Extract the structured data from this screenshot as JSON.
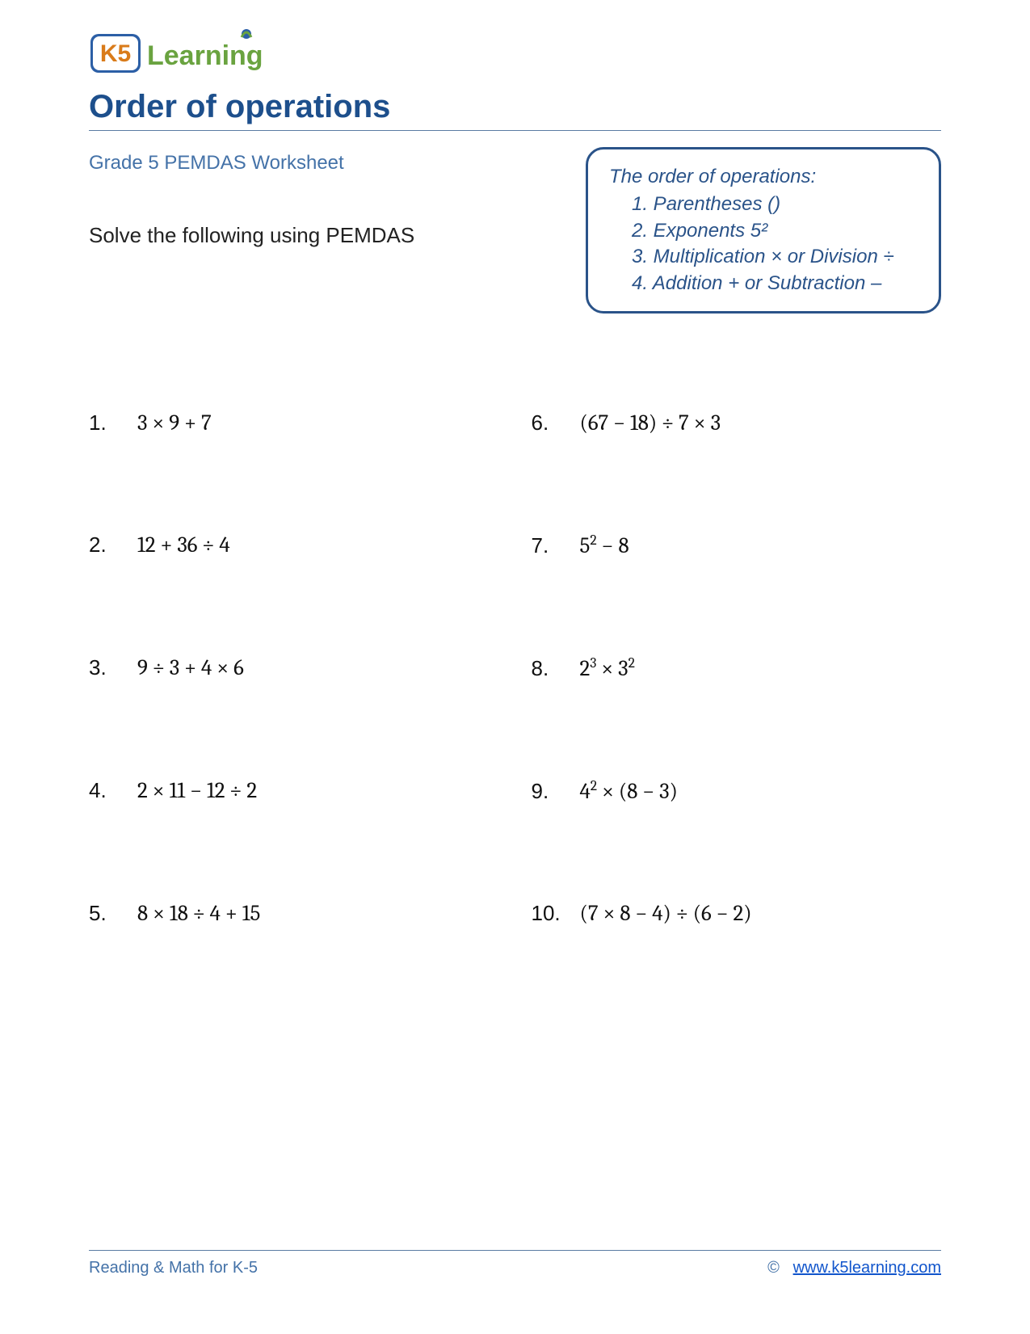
{
  "colors": {
    "accent_blue": "#1d4f8c",
    "sub_blue": "#4472a8",
    "box_blue": "#2a5389",
    "link_blue": "#1155cc",
    "logo_orange": "#d97b1a",
    "logo_blue": "#2c5fa6",
    "logo_green": "#6aa340",
    "hr_color": "#5a7ca3"
  },
  "logo": {
    "brand_left": "K5",
    "brand_right": "Learning"
  },
  "title": "Order of operations",
  "subtitle": "Grade 5 PEMDAS Worksheet",
  "instruction": "Solve the following using PEMDAS",
  "rules": {
    "heading": "The order of operations:",
    "items": [
      "1.  Parentheses ()",
      "2.  Exponents 5²",
      "3.  Multiplication × or Division ÷",
      "4.  Addition + or Subtraction –"
    ]
  },
  "problems": {
    "left": [
      {
        "n": "1.",
        "expr": "3 × 9 + 7"
      },
      {
        "n": "2.",
        "expr": "12 + 36 ÷ 4"
      },
      {
        "n": "3.",
        "expr": "9 ÷ 3 + 4 × 6"
      },
      {
        "n": "4.",
        "expr": "2 × 11 − 12 ÷ 2"
      },
      {
        "n": "5.",
        "expr": "8 × 18 ÷ 4 + 15"
      }
    ],
    "right": [
      {
        "n": "6.",
        "expr_html": "(67 − 18) ÷ 7 × 3"
      },
      {
        "n": "7.",
        "expr_html": "5<sup>2</sup> − 8"
      },
      {
        "n": "8.",
        "expr_html": "2<sup>3</sup> × 3<sup>2</sup>"
      },
      {
        "n": "9.",
        "expr_html": "4<sup>2</sup> × (8 − 3)"
      },
      {
        "n": "10.",
        "expr_html": "(7 × 8 − 4) ÷ (6 − 2)"
      }
    ]
  },
  "footer": {
    "left": "Reading & Math for K-5",
    "copyright": "©",
    "link_text": "www.k5learning.com"
  }
}
